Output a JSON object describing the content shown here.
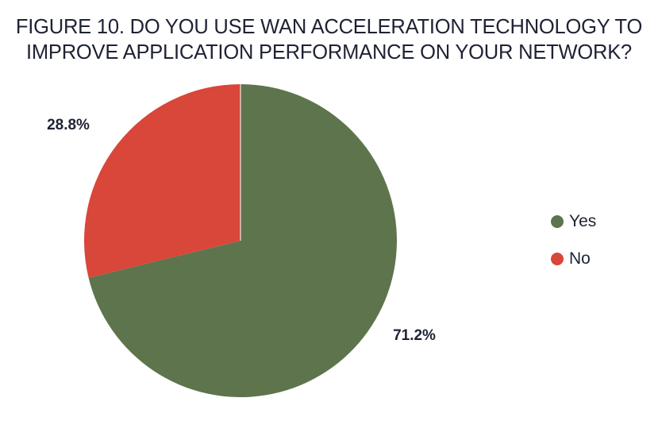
{
  "chart_data": {
    "type": "pie",
    "title": "FIGURE 10. DO YOU USE WAN ACCELERATION TECHNOLOGY TO IMPROVE APPLICATION PERFORMANCE ON YOUR NETWORK?",
    "title_lines": [
      "FIGURE 10. DO YOU USE WAN ACCELERATION TECHNOLOGY TO",
      "IMPROVE APPLICATION PERFORMANCE ON YOUR NETWORK?"
    ],
    "categories": [
      "Yes",
      "No"
    ],
    "values": [
      71.2,
      28.8
    ],
    "value_labels": [
      "71.2%",
      "28.8%"
    ],
    "colors": [
      "#5e744d",
      "#d9463a"
    ],
    "legend_position": "right",
    "start_angle": "12 o'clock, clockwise"
  }
}
